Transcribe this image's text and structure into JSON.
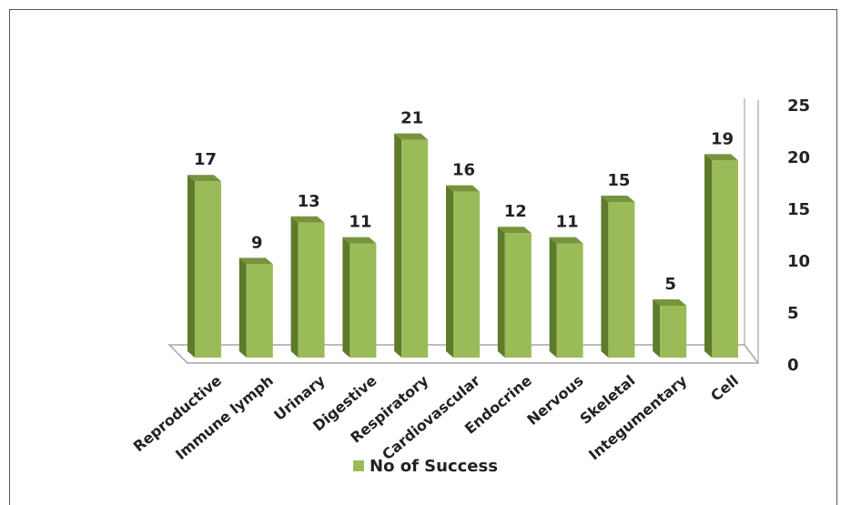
{
  "chart_data": {
    "type": "bar",
    "categories": [
      "Reproductive",
      "Immune lymph",
      "Urinary",
      "Digestive",
      "Respiratory",
      "Cardiovascular",
      "Endocrine",
      "Nervous",
      "Skeletal",
      "Integumentary",
      "Cell"
    ],
    "series": [
      {
        "name": "No of Success",
        "values": [
          17,
          9,
          13,
          11,
          21,
          16,
          12,
          11,
          15,
          5,
          19
        ]
      }
    ],
    "ylim": [
      0,
      25
    ],
    "yticks": [
      0,
      5,
      10,
      15,
      20,
      25
    ],
    "y_axis_side": "right",
    "data_labels": true,
    "grid": false,
    "legend_position": "bottom",
    "colors": {
      "bar_front": "#9bbb59",
      "bar_side": "#5e7a2b",
      "bar_top": "#77933c",
      "floor": "#ffffff",
      "floor_edge": "#a6a6a6"
    }
  }
}
